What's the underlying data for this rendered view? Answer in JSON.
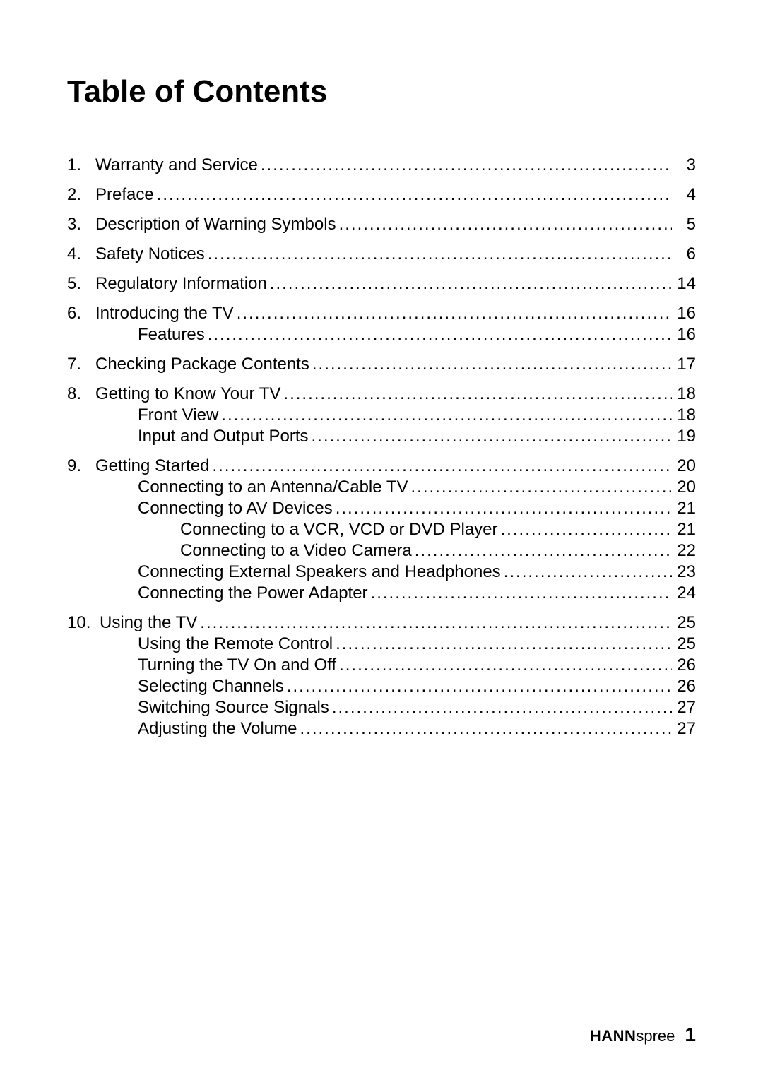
{
  "title": "Table of Contents",
  "entries": [
    {
      "num": "1.",
      "label": "Warranty and Service ",
      "page": "3",
      "level": 0
    },
    {
      "num": "2.",
      "label": "Preface ",
      "page": "4",
      "level": 0
    },
    {
      "num": "3.",
      "label": "Description of Warning Symbols",
      "page": "5",
      "level": 0
    },
    {
      "num": "4.",
      "label": "Safety Notices",
      "page": "6",
      "level": 0
    },
    {
      "num": "5.",
      "label": "Regulatory Information ",
      "page": "14",
      "level": 0
    },
    {
      "num": "6.",
      "label": "Introducing the TV",
      "page": "16",
      "level": 0,
      "group_start": true
    },
    {
      "num": "",
      "label": "Features",
      "page": "16",
      "level": 1,
      "group_end": true
    },
    {
      "num": "7.",
      "label": "Checking Package Contents ",
      "page": "17",
      "level": 0
    },
    {
      "num": "8.",
      "label": "Getting to Know Your TV ",
      "page": "18",
      "level": 0,
      "group_start": true
    },
    {
      "num": "",
      "label": "Front View",
      "page": "18",
      "level": 1
    },
    {
      "num": "",
      "label": "Input and Output Ports ",
      "page": "19",
      "level": 1,
      "group_end": true
    },
    {
      "num": "9.",
      "label": "Getting Started",
      "page": "20",
      "level": 0,
      "group_start": true
    },
    {
      "num": "",
      "label": "Connecting to an Antenna/Cable TV ",
      "page": "20",
      "level": 1
    },
    {
      "num": "",
      "label": "Connecting to AV Devices",
      "page": "21",
      "level": 1
    },
    {
      "num": "",
      "label": "Connecting to a VCR, VCD or DVD Player ",
      "page": "21",
      "level": 2
    },
    {
      "num": "",
      "label": "Connecting to a Video Camera ",
      "page": "22",
      "level": 2
    },
    {
      "num": "",
      "label": "Connecting External Speakers and Headphones ",
      "page": "23",
      "level": 1
    },
    {
      "num": "",
      "label": "Connecting the Power Adapter ",
      "page": "24",
      "level": 1,
      "group_end": true
    },
    {
      "num": "10.",
      "label": "Using the TV ",
      "page": "25",
      "level": 0,
      "num_pad": true,
      "group_start": true
    },
    {
      "num": "",
      "label": "Using the Remote Control ",
      "page": "25",
      "level": 1
    },
    {
      "num": "",
      "label": "Turning the TV On and Off ",
      "page": "26",
      "level": 1
    },
    {
      "num": "",
      "label": "Selecting Channels ",
      "page": "26",
      "level": 1
    },
    {
      "num": "",
      "label": "Switching Source Signals ",
      "page": "27",
      "level": 1
    },
    {
      "num": "",
      "label": "Adjusting the Volume ",
      "page": "27",
      "level": 1,
      "group_end": true
    }
  ],
  "footer": {
    "brand_bold": "HANN",
    "brand_light": "spree",
    "page_num": "1"
  },
  "style": {
    "page_bg": "#ffffff",
    "text_color": "#000000",
    "title_fontsize": 44,
    "entry_fontsize": 24,
    "footer_brand_fontsize": 22,
    "footer_pagenum_fontsize": 28,
    "indent_level1": 100,
    "indent_level2": 160
  }
}
